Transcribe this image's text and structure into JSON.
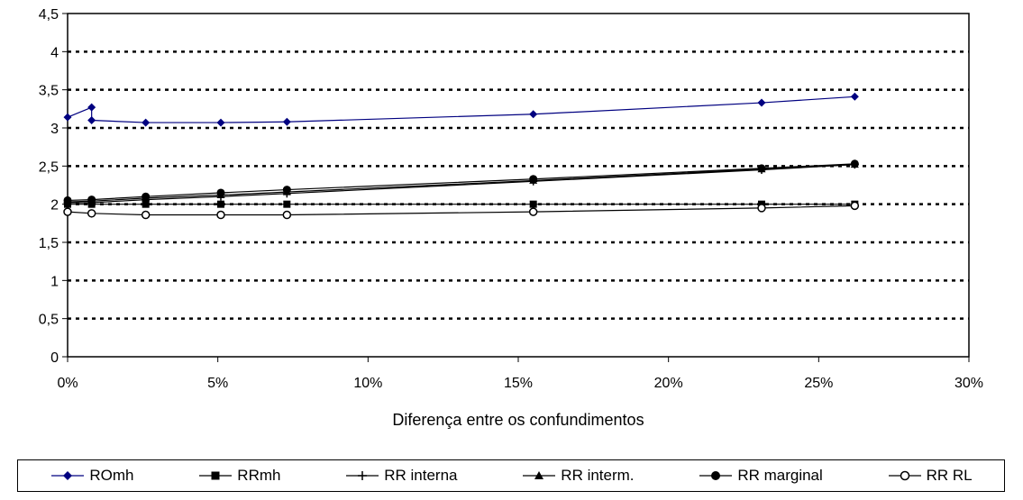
{
  "chart_data": {
    "type": "line",
    "xlabel": "Diferença entre os confundimentos",
    "ylabel": "",
    "xlim": [
      0,
      0.3
    ],
    "ylim": [
      0,
      4.5
    ],
    "x_ticks": [
      "0%",
      "5%",
      "10%",
      "15%",
      "20%",
      "25%",
      "30%"
    ],
    "y_ticks": [
      "0",
      "0,5",
      "1",
      "1,5",
      "2",
      "2,5",
      "3",
      "3,5",
      "4",
      "4,5"
    ],
    "grid": "horizontal-dotted",
    "legend_position": "bottom",
    "series": [
      {
        "name": "ROmh",
        "color": "#000080",
        "marker": "diamond",
        "points": [
          [
            0.0,
            3.14
          ],
          [
            0.008,
            3.27
          ],
          [
            0.008,
            3.1
          ],
          [
            0.026,
            3.07
          ],
          [
            0.051,
            3.07
          ],
          [
            0.073,
            3.08
          ],
          [
            0.155,
            3.18
          ],
          [
            0.231,
            3.33
          ],
          [
            0.262,
            3.41
          ]
        ]
      },
      {
        "name": "RRmh",
        "color": "#000000",
        "marker": "square",
        "points": [
          [
            0.0,
            2.0
          ],
          [
            0.008,
            2.0
          ],
          [
            0.026,
            2.0
          ],
          [
            0.051,
            2.0
          ],
          [
            0.073,
            2.0
          ],
          [
            0.155,
            2.0
          ],
          [
            0.231,
            2.0
          ],
          [
            0.262,
            2.0
          ]
        ]
      },
      {
        "name": "RR interna",
        "color": "#000000",
        "marker": "plus",
        "points": [
          [
            0.0,
            2.02
          ],
          [
            0.008,
            2.02
          ],
          [
            0.026,
            2.06
          ],
          [
            0.051,
            2.1
          ],
          [
            0.073,
            2.14
          ],
          [
            0.155,
            2.3
          ],
          [
            0.231,
            2.45
          ],
          [
            0.262,
            2.52
          ]
        ]
      },
      {
        "name": "RR interm.",
        "color": "#000000",
        "marker": "triangle",
        "points": [
          [
            0.0,
            2.03
          ],
          [
            0.008,
            2.04
          ],
          [
            0.026,
            2.08
          ],
          [
            0.051,
            2.12
          ],
          [
            0.073,
            2.16
          ],
          [
            0.155,
            2.31
          ],
          [
            0.231,
            2.46
          ],
          [
            0.262,
            2.52
          ]
        ]
      },
      {
        "name": "RR marginal",
        "color": "#000000",
        "marker": "circle",
        "points": [
          [
            0.0,
            2.05
          ],
          [
            0.008,
            2.06
          ],
          [
            0.026,
            2.1
          ],
          [
            0.051,
            2.15
          ],
          [
            0.073,
            2.19
          ],
          [
            0.155,
            2.33
          ],
          [
            0.231,
            2.47
          ],
          [
            0.262,
            2.53
          ]
        ]
      },
      {
        "name": "RR RL",
        "color": "#000000",
        "marker": "open-circle",
        "points": [
          [
            0.0,
            1.9
          ],
          [
            0.008,
            1.88
          ],
          [
            0.026,
            1.86
          ],
          [
            0.051,
            1.86
          ],
          [
            0.073,
            1.86
          ],
          [
            0.155,
            1.9
          ],
          [
            0.231,
            1.95
          ],
          [
            0.262,
            1.98
          ]
        ]
      }
    ]
  }
}
